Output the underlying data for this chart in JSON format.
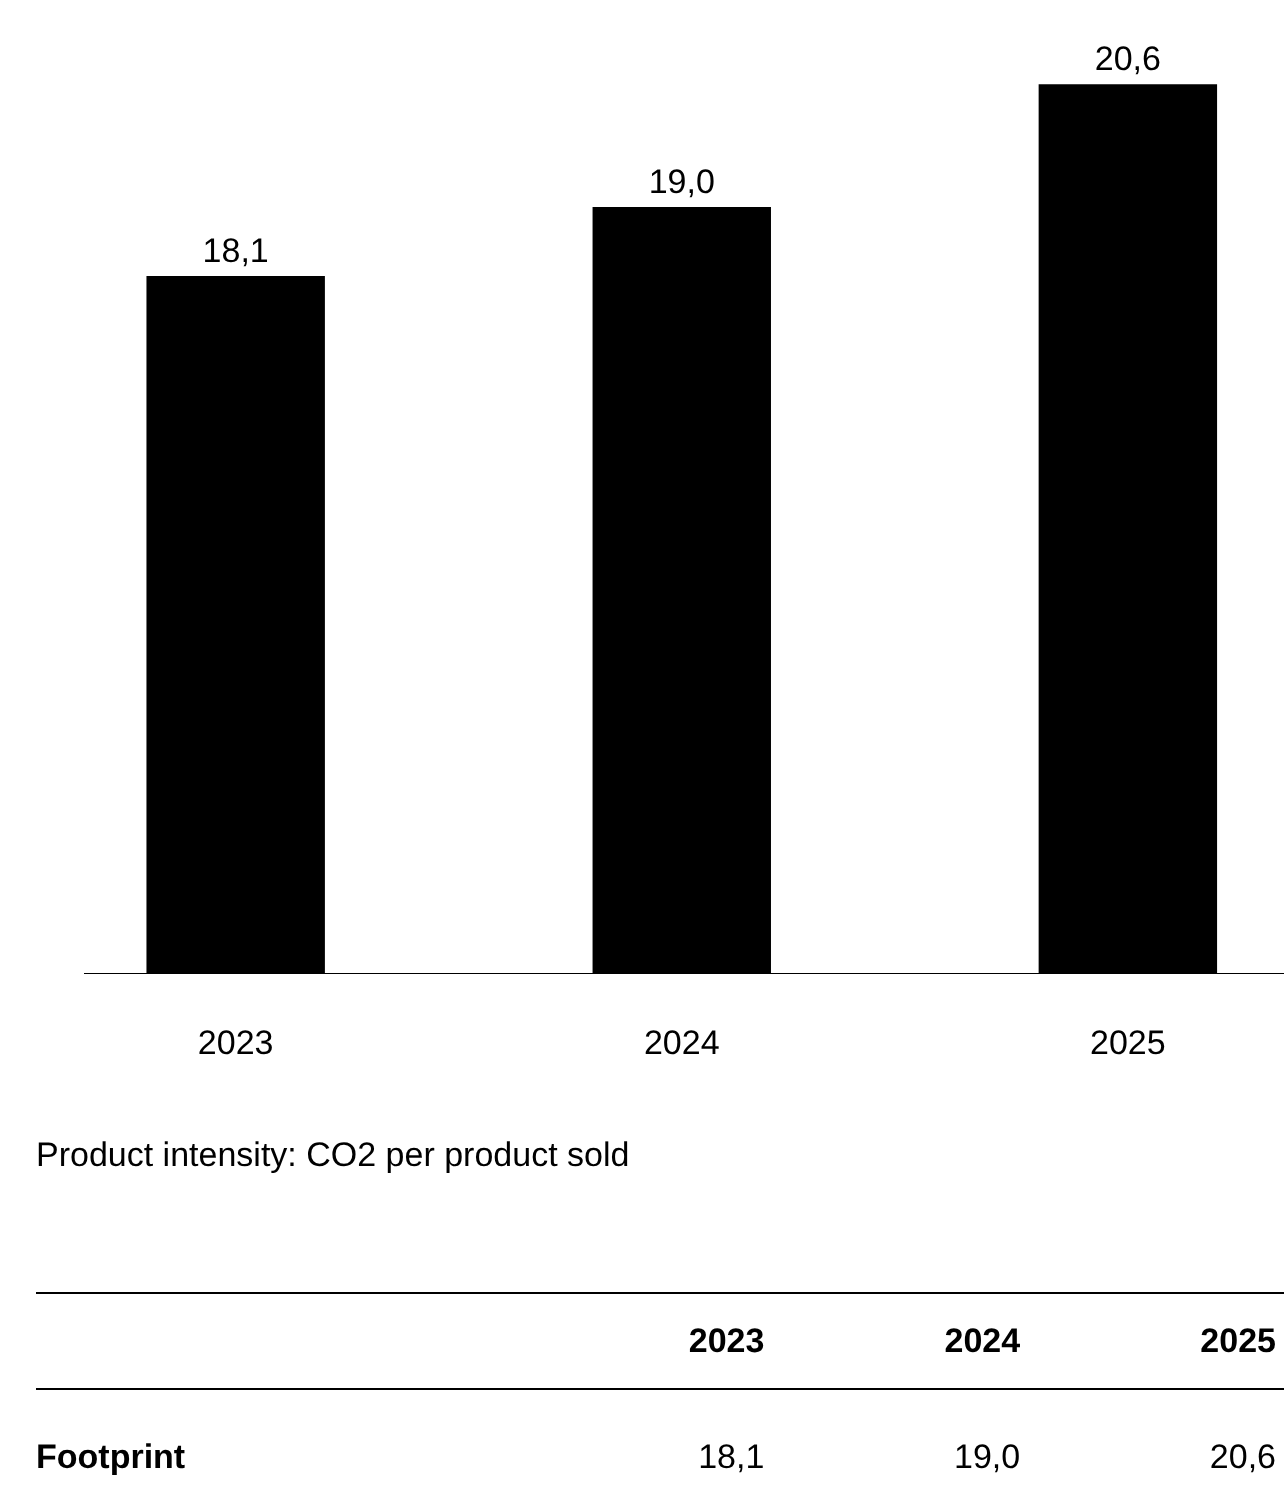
{
  "chart_data": {
    "type": "bar",
    "categories": [
      "2023",
      "2024",
      "2025"
    ],
    "series": [
      {
        "name": "Footprint",
        "color": "#000000",
        "values": [
          18.1,
          19.0,
          20.6
        ],
        "value_labels": [
          "18,1",
          "19,0",
          "20,6"
        ]
      }
    ],
    "ylim": [
      9,
      21.7
    ],
    "tick_labels": "x",
    "grid": false,
    "legend": false,
    "annotations": [
      "Product intensity: CO2 per product sold"
    ]
  }
}
